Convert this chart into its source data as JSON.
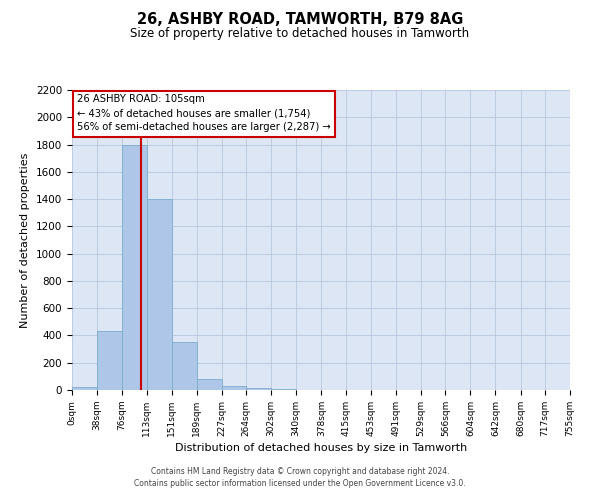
{
  "title": "26, ASHBY ROAD, TAMWORTH, B79 8AG",
  "subtitle": "Size of property relative to detached houses in Tamworth",
  "xlabel": "Distribution of detached houses by size in Tamworth",
  "ylabel": "Number of detached properties",
  "bin_edges": [
    0,
    38,
    76,
    113,
    151,
    189,
    227,
    264,
    302,
    340,
    378,
    415,
    453,
    491,
    529,
    566,
    604,
    642,
    680,
    717,
    755
  ],
  "bin_counts": [
    20,
    430,
    1800,
    1400,
    350,
    80,
    30,
    15,
    5,
    0,
    0,
    0,
    0,
    0,
    0,
    0,
    0,
    0,
    0,
    0
  ],
  "property_size": 105,
  "property_label": "26 ASHBY ROAD: 105sqm",
  "annotation_line1": "← 43% of detached houses are smaller (1,754)",
  "annotation_line2": "56% of semi-detached houses are larger (2,287) →",
  "bar_color": "#aec6e8",
  "bar_edge_color": "#7aaecc",
  "vline_color": "#cc0000",
  "annotation_box_edge": "#cc0000",
  "background_color": "#ffffff",
  "plot_bg_color": "#dce6f5",
  "grid_color": "#b8c8dc",
  "footer_line1": "Contains HM Land Registry data © Crown copyright and database right 2024.",
  "footer_line2": "Contains public sector information licensed under the Open Government Licence v3.0.",
  "tick_labels": [
    "0sqm",
    "38sqm",
    "76sqm",
    "113sqm",
    "151sqm",
    "189sqm",
    "227sqm",
    "264sqm",
    "302sqm",
    "340sqm",
    "378sqm",
    "415sqm",
    "453sqm",
    "491sqm",
    "529sqm",
    "566sqm",
    "604sqm",
    "642sqm",
    "680sqm",
    "717sqm",
    "755sqm"
  ],
  "ylim": [
    0,
    2200
  ],
  "yticks": [
    0,
    200,
    400,
    600,
    800,
    1000,
    1200,
    1400,
    1600,
    1800,
    2000,
    2200
  ]
}
